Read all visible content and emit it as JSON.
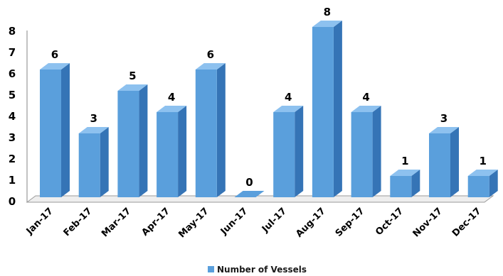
{
  "chart_data": {
    "type": "bar",
    "style": "3d-column",
    "categories": [
      "Jan-17",
      "Feb-17",
      "Mar-17",
      "Apr-17",
      "May-17",
      "Jun-17",
      "Jul-17",
      "Aug-17",
      "Sep-17",
      "Oct-17",
      "Nov-17",
      "Dec-17"
    ],
    "series": [
      {
        "name": "Number of Vessels",
        "values": [
          6,
          3,
          5,
          4,
          6,
          0,
          4,
          8,
          4,
          1,
          3,
          1
        ]
      }
    ],
    "ylim": [
      0,
      8
    ],
    "yticks": [
      "0",
      "1",
      "2",
      "3",
      "4",
      "5",
      "6",
      "7",
      "8"
    ],
    "data_labels": [
      "6",
      "3",
      "5",
      "4",
      "6",
      "0",
      "4",
      "8",
      "4",
      "1",
      "3",
      "1"
    ],
    "legend": {
      "position": "bottom",
      "label": "Number of Vessels"
    },
    "grid": false,
    "colors": {
      "front": "#5a9fdc",
      "side": "#3574b6",
      "top": "#8dc1ef",
      "floor": "#eeeeee",
      "axis": "#9a9a9a"
    }
  }
}
